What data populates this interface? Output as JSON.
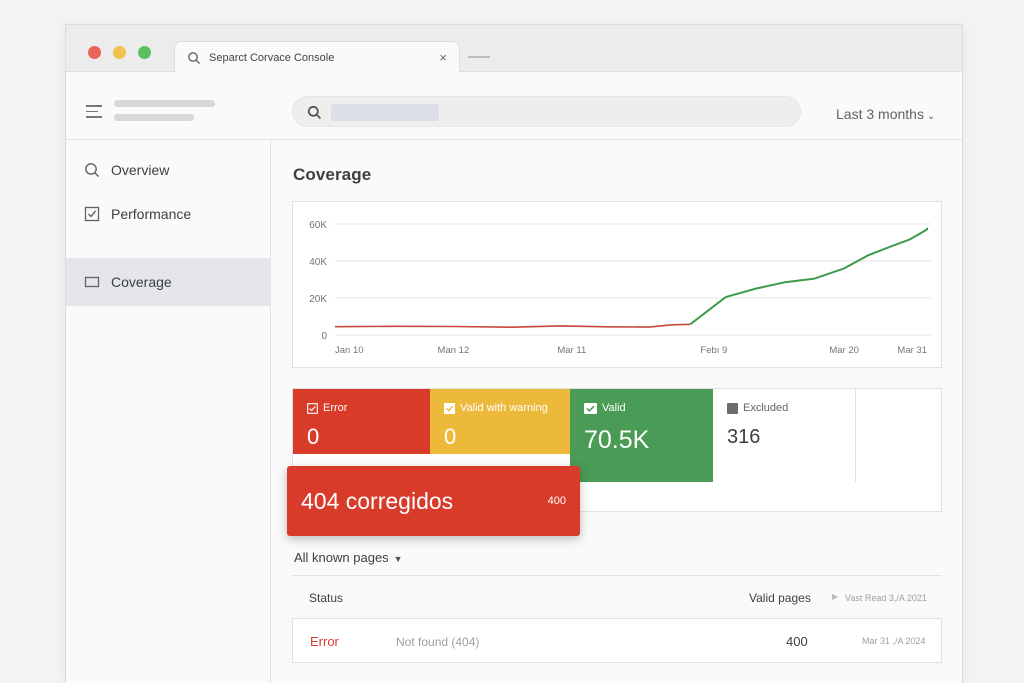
{
  "browser": {
    "tab_title": "Separct Corvace Console",
    "tab_close": "×"
  },
  "header": {
    "date_range": "Last 3 months",
    "date_range_icon": "chevron-down-icon"
  },
  "sidebar": {
    "items": [
      {
        "label": "Overview",
        "icon": "search-icon",
        "active": false
      },
      {
        "label": "Performance",
        "icon": "checkbox-icon",
        "active": false
      },
      {
        "label": "Coverage",
        "icon": "square-icon",
        "active": true
      }
    ]
  },
  "main": {
    "title": "Coverage",
    "cards": {
      "error": {
        "label": "Error",
        "value": "0"
      },
      "warning": {
        "label": "Valid with warning",
        "value": "0"
      },
      "valid": {
        "label": "Valid",
        "value": "70.5K"
      },
      "excluded": {
        "label": "Excluded",
        "value": "316"
      }
    },
    "toast": {
      "text": "404 corregidos",
      "count": "400"
    },
    "filter": {
      "label": "All known pages"
    },
    "table": {
      "headers": {
        "status": "Status",
        "valid_pages": "Valid pages",
        "last_crawled": "Vast Read 3,/A 2021"
      },
      "rows": [
        {
          "status": "Error",
          "reason": "Not found (404)",
          "pages": "400",
          "date": "Mar 31 ,/A 2024"
        }
      ]
    }
  },
  "colors": {
    "error": "#d93b2b",
    "warning": "#ecb93a",
    "valid": "#4a9b55",
    "error_line": "#c8463a",
    "valid_line": "#3f9b4c"
  },
  "chart_data": {
    "type": "line",
    "x_ticks": [
      "Jan 10",
      "Man 12",
      "Mar 11",
      "Febı 9",
      "Mar 20",
      "Mar 31"
    ],
    "y_ticks": [
      "0",
      "20K",
      "40K",
      "60K"
    ],
    "ylim": [
      0,
      60000
    ],
    "grid": true,
    "series": [
      {
        "color": "#c8463a",
        "values": [
          {
            "x": 0.0,
            "y": 4500
          },
          {
            "x": 0.1,
            "y": 4700
          },
          {
            "x": 0.2,
            "y": 4600
          },
          {
            "x": 0.3,
            "y": 4200
          },
          {
            "x": 0.38,
            "y": 4900
          },
          {
            "x": 0.46,
            "y": 4400
          },
          {
            "x": 0.53,
            "y": 4300
          },
          {
            "x": 0.57,
            "y": 5500
          },
          {
            "x": 0.6,
            "y": 5800
          }
        ]
      },
      {
        "color": "#3f9b4c",
        "values": [
          {
            "x": 0.6,
            "y": 5800
          },
          {
            "x": 0.66,
            "y": 20500
          },
          {
            "x": 0.71,
            "y": 25000
          },
          {
            "x": 0.76,
            "y": 28500
          },
          {
            "x": 0.81,
            "y": 30500
          },
          {
            "x": 0.86,
            "y": 36000
          },
          {
            "x": 0.9,
            "y": 43000
          },
          {
            "x": 0.94,
            "y": 48000
          },
          {
            "x": 0.97,
            "y": 51500
          },
          {
            "x": 1.0,
            "y": 57000
          },
          {
            "x": 1.01,
            "y": 58000
          }
        ]
      }
    ]
  }
}
